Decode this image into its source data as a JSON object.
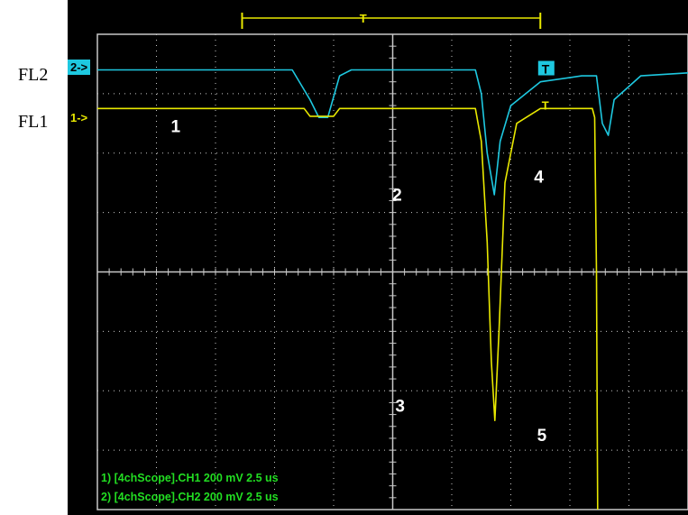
{
  "labels": {
    "fl2": "FL2",
    "fl1": "FL1"
  },
  "markers": {
    "ch2": "2->",
    "ch1": "1->",
    "ch2_trigger": "T",
    "ch1_trigger": "T",
    "timebase_trigger": "T"
  },
  "peak_labels": [
    "1",
    "2",
    "3",
    "4",
    "5"
  ],
  "status_lines": [
    "1) [4chScope].CH1  200 mV   2.5 us",
    "2) [4chScope].CH2  200 mV   2.5 us"
  ],
  "colors": {
    "background": "#000000",
    "grid": "#c8c8c8",
    "ch1": "#e8e800",
    "ch2": "#1ec8e0",
    "status_text": "#22dd22",
    "timebase_bracket": "#e8e800"
  },
  "chart_data": {
    "type": "line",
    "grid": true,
    "x_divisions": 10,
    "y_divisions": 8,
    "xlim": [
      0,
      10
    ],
    "ylim": [
      -4,
      4
    ],
    "series": [
      {
        "name": "CH2",
        "points": [
          [
            0,
            3.4
          ],
          [
            3.3,
            3.4
          ],
          [
            3.6,
            2.9
          ],
          [
            3.75,
            2.6
          ],
          [
            3.9,
            2.6
          ],
          [
            4.1,
            3.3
          ],
          [
            4.3,
            3.4
          ],
          [
            6.4,
            3.4
          ],
          [
            6.5,
            3.0
          ],
          [
            6.6,
            2.0
          ],
          [
            6.72,
            1.3
          ],
          [
            6.82,
            2.2
          ],
          [
            7.0,
            2.8
          ],
          [
            7.5,
            3.2
          ],
          [
            8.2,
            3.3
          ],
          [
            8.45,
            3.3
          ],
          [
            8.55,
            2.5
          ],
          [
            8.65,
            2.3
          ],
          [
            8.75,
            2.9
          ],
          [
            9.2,
            3.3
          ],
          [
            10,
            3.35
          ]
        ]
      },
      {
        "name": "CH1",
        "points": [
          [
            0,
            2.75
          ],
          [
            3.5,
            2.75
          ],
          [
            3.6,
            2.62
          ],
          [
            4.0,
            2.62
          ],
          [
            4.1,
            2.75
          ],
          [
            6.4,
            2.75
          ],
          [
            6.5,
            2.2
          ],
          [
            6.6,
            0.5
          ],
          [
            6.67,
            -1.5
          ],
          [
            6.73,
            -2.5
          ],
          [
            6.8,
            -1.0
          ],
          [
            6.9,
            1.5
          ],
          [
            7.1,
            2.5
          ],
          [
            7.5,
            2.75
          ],
          [
            8.38,
            2.75
          ],
          [
            8.42,
            2.6
          ],
          [
            8.45,
            0.0
          ],
          [
            8.47,
            -4.0
          ]
        ]
      }
    ]
  }
}
